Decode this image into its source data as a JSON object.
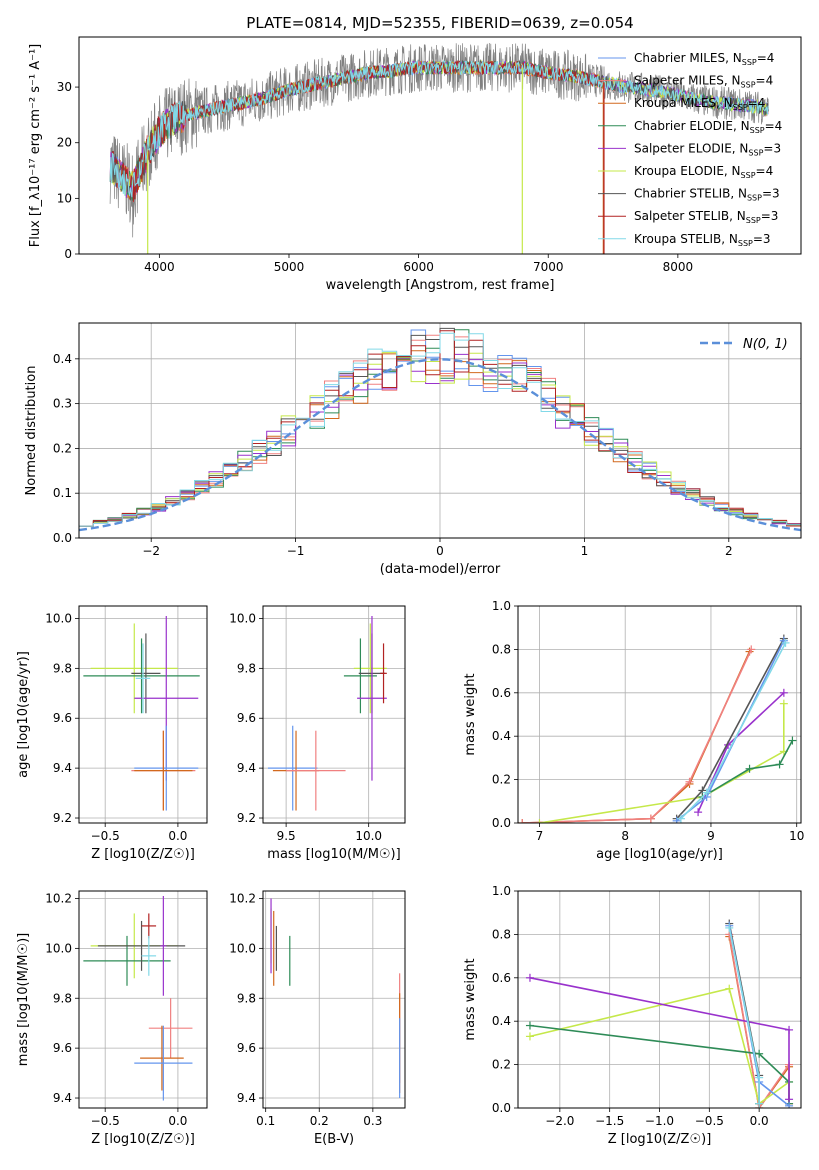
{
  "title": "PLATE=0814, MJD=52355, FIBERID=0639, z=0.054",
  "colors": {
    "cm": "#6495ed",
    "sm": "#f08080",
    "km": "#d2691e",
    "ce": "#2e8b57",
    "se": "#9932cc",
    "ke": "#c5e84a",
    "cs": "#555555",
    "ss": "#b22222",
    "ks": "#82d9e8",
    "data": "#808080",
    "gauss": "#5b8fd9"
  },
  "chart_data": [
    {
      "id": "spectrum",
      "type": "line",
      "xlabel": "wavelength [Angstrom, rest frame]",
      "ylabel": "Flux [f_λ10⁻¹⁷ erg cm⁻² s⁻¹ A⁻¹]",
      "xlim": [
        3380,
        8950
      ],
      "ylim": [
        0,
        39
      ],
      "xticks": [
        4000,
        5000,
        6000,
        7000,
        8000
      ],
      "yticks": [
        0,
        10,
        20,
        30
      ],
      "legend": [
        {
          "key": "cm",
          "label": "Chabrier MILES, N",
          "sub": "SSP",
          "tail": "=4"
        },
        {
          "key": "sm",
          "label": "Salpeter MILES, N",
          "sub": "SSP",
          "tail": "=4"
        },
        {
          "key": "km",
          "label": "Kroupa MILES, N",
          "sub": "SSP",
          "tail": "=4"
        },
        {
          "key": "ce",
          "label": "Chabrier ELODIE, N",
          "sub": "SSP",
          "tail": "=4"
        },
        {
          "key": "se",
          "label": "Salpeter ELODIE, N",
          "sub": "SSP",
          "tail": "=3"
        },
        {
          "key": "ke",
          "label": "Kroupa ELODIE, N",
          "sub": "SSP",
          "tail": "=4"
        },
        {
          "key": "cs",
          "label": "Chabrier STELIB, N",
          "sub": "SSP",
          "tail": "=3"
        },
        {
          "key": "ss",
          "label": "Salpeter STELIB, N",
          "sub": "SSP",
          "tail": "=3"
        },
        {
          "key": "ks",
          "label": "Kroupa STELIB, N",
          "sub": "SSP",
          "tail": "=3"
        }
      ],
      "continuum": [
        [
          3620,
          16
        ],
        [
          3700,
          14
        ],
        [
          3800,
          12
        ],
        [
          3900,
          18
        ],
        [
          4000,
          22
        ],
        [
          4100,
          24
        ],
        [
          4200,
          25
        ],
        [
          4400,
          26
        ],
        [
          4600,
          27
        ],
        [
          4800,
          28
        ],
        [
          5000,
          29.5
        ],
        [
          5200,
          30.5
        ],
        [
          5400,
          31.5
        ],
        [
          5600,
          32.5
        ],
        [
          5800,
          33
        ],
        [
          6000,
          33.5
        ],
        [
          6200,
          33.5
        ],
        [
          6400,
          33.5
        ],
        [
          6600,
          33.5
        ],
        [
          6800,
          33.5
        ],
        [
          7000,
          32.5
        ],
        [
          7200,
          32
        ],
        [
          7400,
          31
        ],
        [
          7600,
          30
        ],
        [
          7800,
          29.5
        ],
        [
          8000,
          28.5
        ],
        [
          8200,
          27.5
        ],
        [
          8400,
          27
        ],
        [
          8600,
          26.5
        ],
        [
          8700,
          26
        ]
      ],
      "drops": [
        {
          "key": "ke",
          "x": 3910,
          "to": 0
        },
        {
          "key": "ke",
          "x": 6800,
          "to": 0
        },
        {
          "key": "km",
          "x": 7425,
          "to": 0
        },
        {
          "key": "ss",
          "x": 7430,
          "to": 0
        }
      ]
    },
    {
      "id": "residuals",
      "type": "histogram",
      "xlabel": "(data-model)/error",
      "ylabel": "Normed distribution",
      "xlim": [
        -2.5,
        2.5
      ],
      "ylim": [
        0,
        0.48
      ],
      "xticks": [
        -2,
        -1,
        0,
        1,
        2
      ],
      "yticks": [
        0.0,
        0.1,
        0.2,
        0.3,
        0.4
      ],
      "legend": "N(0, 1)",
      "bin_width": 0.1
    },
    {
      "id": "z-age",
      "type": "errorbar",
      "xlabel": "Z [log10(Z/Z☉)]",
      "ylabel": "age [log10(age/yr)]",
      "xlim": [
        -0.68,
        0.2
      ],
      "ylim": [
        9.18,
        10.05
      ],
      "xticks": [
        -0.5,
        0.0
      ],
      "yticks": [
        9.2,
        9.4,
        9.6,
        9.8,
        10.0
      ],
      "points": [
        {
          "key": "ke",
          "x": -0.3,
          "xerr": 0.3,
          "y": 9.8,
          "yerr": 0.18
        },
        {
          "key": "ce",
          "x": -0.25,
          "xerr": 0.4,
          "y": 9.77,
          "yerr": 0.15
        },
        {
          "key": "cs",
          "x": -0.22,
          "xerr": 0.1,
          "y": 9.78,
          "yerr": 0.16
        },
        {
          "key": "se",
          "x": -0.08,
          "xerr": 0.22,
          "y": 9.68,
          "yerr": 0.33
        },
        {
          "key": "cm",
          "x": -0.08,
          "xerr": 0.22,
          "y": 9.4,
          "yerr": 0.17
        },
        {
          "key": "sm",
          "x": -0.1,
          "xerr": 0.22,
          "y": 9.39,
          "yerr": 0.16
        },
        {
          "key": "km",
          "x": -0.1,
          "xerr": 0.2,
          "y": 9.39,
          "yerr": 0.16
        },
        {
          "key": "ks",
          "x": -0.24,
          "xerr": 0.05,
          "y": 9.76,
          "yerr": 0.14
        }
      ]
    },
    {
      "id": "mass-age",
      "type": "errorbar",
      "xlabel": "mass [log10(M/M☉)]",
      "ylabel": "",
      "xlim": [
        9.36,
        10.22
      ],
      "ylim": [
        9.18,
        10.05
      ],
      "xticks": [
        9.5,
        10.0
      ],
      "yticks": [
        9.2,
        9.4,
        9.6,
        9.8,
        10.0
      ],
      "points": [
        {
          "key": "ke",
          "x": 10.01,
          "xerr": 0.1,
          "y": 9.8,
          "yerr": 0.18
        },
        {
          "key": "ce",
          "x": 9.95,
          "xerr": 0.1,
          "y": 9.77,
          "yerr": 0.15
        },
        {
          "key": "cs",
          "x": 10.02,
          "xerr": 0.08,
          "y": 9.78,
          "yerr": 0.16
        },
        {
          "key": "se",
          "x": 10.02,
          "xerr": 0.09,
          "y": 9.68,
          "yerr": 0.33
        },
        {
          "key": "ss",
          "x": 10.09,
          "xerr": 0.02,
          "y": 9.78,
          "yerr": 0.12
        },
        {
          "key": "cm",
          "x": 9.54,
          "xerr": 0.15,
          "y": 9.4,
          "yerr": 0.17
        },
        {
          "key": "km",
          "x": 9.56,
          "xerr": 0.14,
          "y": 9.39,
          "yerr": 0.16
        },
        {
          "key": "sm",
          "x": 9.68,
          "xerr": 0.18,
          "y": 9.39,
          "yerr": 0.16
        }
      ]
    },
    {
      "id": "age-weight",
      "type": "line",
      "xlabel": "age [log10(age/yr)]",
      "ylabel": "mass weight",
      "xlim": [
        6.75,
        10.05
      ],
      "ylim": [
        0,
        1.0
      ],
      "xticks": [
        7,
        8,
        9,
        10
      ],
      "yticks": [
        0.0,
        0.2,
        0.4,
        0.6,
        0.8,
        1.0
      ],
      "series": [
        {
          "key": "km",
          "points": [
            [
              6.8,
              0.0
            ],
            [
              8.3,
              0.02
            ],
            [
              8.75,
              0.18
            ],
            [
              9.45,
              0.79
            ]
          ]
        },
        {
          "key": "sm",
          "points": [
            [
              6.8,
              0.0
            ],
            [
              8.3,
              0.02
            ],
            [
              8.75,
              0.19
            ],
            [
              9.47,
              0.8
            ]
          ]
        },
        {
          "key": "ke",
          "points": [
            [
              7.0,
              0.0
            ],
            [
              8.9,
              0.12
            ],
            [
              9.85,
              0.33
            ],
            [
              9.85,
              0.55
            ]
          ]
        },
        {
          "key": "ce",
          "points": [
            [
              8.9,
              0.12
            ],
            [
              9.45,
              0.25
            ],
            [
              9.8,
              0.27
            ],
            [
              9.95,
              0.38
            ]
          ]
        },
        {
          "key": "se",
          "points": [
            [
              8.85,
              0.05
            ],
            [
              9.2,
              0.36
            ],
            [
              9.85,
              0.6
            ]
          ]
        },
        {
          "key": "cs",
          "points": [
            [
              8.6,
              0.02
            ],
            [
              8.9,
              0.15
            ],
            [
              9.85,
              0.85
            ]
          ]
        },
        {
          "key": "cm",
          "points": [
            [
              8.6,
              0.01
            ],
            [
              8.95,
              0.12
            ],
            [
              9.85,
              0.84
            ]
          ]
        },
        {
          "key": "ks",
          "points": [
            [
              8.65,
              0.02
            ],
            [
              8.95,
              0.14
            ],
            [
              9.87,
              0.83
            ]
          ]
        }
      ]
    },
    {
      "id": "z-mass",
      "type": "errorbar",
      "xlabel": "Z [log10(Z/Z☉)]",
      "ylabel": "mass [log10(M/M☉)]",
      "xlim": [
        -0.68,
        0.2
      ],
      "ylim": [
        9.36,
        10.23
      ],
      "xticks": [
        -0.5,
        0.0
      ],
      "yticks": [
        9.4,
        9.6,
        9.8,
        10.0,
        10.2
      ],
      "points": [
        {
          "key": "ke",
          "x": -0.3,
          "xerr": 0.3,
          "y": 10.01,
          "yerr": 0.13
        },
        {
          "key": "ce",
          "x": -0.35,
          "xerr": 0.3,
          "y": 9.95,
          "yerr": 0.1
        },
        {
          "key": "cs",
          "x": -0.25,
          "xerr": 0.3,
          "y": 10.01,
          "yerr": 0.1
        },
        {
          "key": "ss",
          "x": -0.2,
          "xerr": 0.05,
          "y": 10.09,
          "yerr": 0.05
        },
        {
          "key": "ks",
          "x": -0.2,
          "xerr": 0.05,
          "y": 9.97,
          "yerr": 0.08
        },
        {
          "key": "se",
          "x": -0.1,
          "xerr": 0.02,
          "y": 10.01,
          "yerr": 0.2
        },
        {
          "key": "sm",
          "x": -0.05,
          "xerr": 0.15,
          "y": 9.68,
          "yerr": 0.12
        },
        {
          "key": "km",
          "x": -0.11,
          "xerr": 0.15,
          "y": 9.56,
          "yerr": 0.13
        },
        {
          "key": "cm",
          "x": -0.1,
          "xerr": 0.2,
          "y": 9.54,
          "yerr": 0.15
        }
      ]
    },
    {
      "id": "ebv-mass",
      "type": "errorbar",
      "xlabel": "E(B-V)",
      "ylabel": "",
      "xlim": [
        0.095,
        0.36
      ],
      "ylim": [
        9.36,
        10.23
      ],
      "xticks": [
        0.1,
        0.2,
        0.3
      ],
      "yticks": [
        9.4,
        9.6,
        9.8,
        10.0,
        10.2
      ],
      "points": [
        {
          "key": "ke",
          "x": 0.11,
          "y": 10.05,
          "yerr": 0.11
        },
        {
          "key": "cs",
          "x": 0.12,
          "y": 10.0,
          "yerr": 0.09
        },
        {
          "key": "ce",
          "x": 0.145,
          "y": 9.95,
          "yerr": 0.1
        },
        {
          "key": "se",
          "x": 0.11,
          "y": 10.05,
          "yerr": 0.15
        },
        {
          "key": "km",
          "x": 0.115,
          "y": 10.0,
          "yerr": 0.15
        },
        {
          "key": "sm",
          "x": 0.35,
          "y": 9.68,
          "yerr": 0.22
        },
        {
          "key": "km",
          "x": 0.35,
          "y": 9.62,
          "yerr": 0.2
        },
        {
          "key": "cm",
          "x": 0.35,
          "y": 9.56,
          "yerr": 0.16
        }
      ]
    },
    {
      "id": "z-weight",
      "type": "line",
      "xlabel": "Z [log10(Z/Z☉)]",
      "ylabel": "mass weight",
      "xlim": [
        -2.42,
        0.42
      ],
      "ylim": [
        0,
        1.0
      ],
      "xticks": [
        -2.0,
        -1.5,
        -1.0,
        -0.5,
        0.0
      ],
      "yticks": [
        0.0,
        0.2,
        0.4,
        0.6,
        0.8,
        1.0
      ],
      "series": [
        {
          "key": "km",
          "points": [
            [
              -0.3,
              0.79
            ],
            [
              0.0,
              0.0
            ],
            [
              0.3,
              0.19
            ],
            [
              0.3,
              0.02
            ]
          ]
        },
        {
          "key": "sm",
          "points": [
            [
              -0.3,
              0.8
            ],
            [
              0.0,
              0.0
            ],
            [
              0.3,
              0.2
            ],
            [
              0.3,
              0.02
            ]
          ]
        },
        {
          "key": "ke",
          "points": [
            [
              -2.3,
              0.33
            ],
            [
              -0.3,
              0.55
            ],
            [
              0.0,
              0.02
            ],
            [
              0.3,
              0.12
            ]
          ]
        },
        {
          "key": "ce",
          "points": [
            [
              -2.3,
              0.38
            ],
            [
              0.0,
              0.25
            ],
            [
              0.3,
              0.12
            ],
            [
              0.3,
              0.02
            ]
          ]
        },
        {
          "key": "se",
          "points": [
            [
              -2.3,
              0.6
            ],
            [
              0.3,
              0.36
            ],
            [
              0.3,
              0.04
            ]
          ]
        },
        {
          "key": "cs",
          "points": [
            [
              -0.3,
              0.85
            ],
            [
              0.0,
              0.15
            ],
            [
              0.0,
              0.02
            ]
          ]
        },
        {
          "key": "cm",
          "points": [
            [
              -0.3,
              0.84
            ],
            [
              0.0,
              0.12
            ],
            [
              0.3,
              0.01
            ]
          ]
        },
        {
          "key": "ks",
          "points": [
            [
              -0.3,
              0.83
            ],
            [
              0.0,
              0.14
            ],
            [
              0.0,
              0.02
            ]
          ]
        }
      ]
    }
  ]
}
